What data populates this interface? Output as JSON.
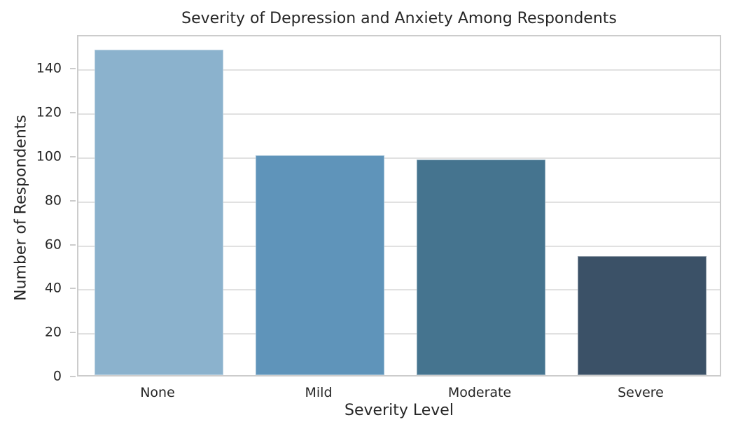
{
  "chart_data": {
    "type": "bar",
    "title": "Severity of Depression and Anxiety Among Respondents",
    "xlabel": "Severity Level",
    "ylabel": "Number of Respondents",
    "categories": [
      "None",
      "Mild",
      "Moderate",
      "Severe"
    ],
    "values": [
      148,
      100,
      98,
      54
    ],
    "bar_colors": [
      "#8bb2cd",
      "#5f94ba",
      "#45748f",
      "#3b5167"
    ],
    "ylim": [
      0,
      155.4
    ],
    "yticks": [
      0,
      20,
      40,
      60,
      80,
      100,
      120,
      140
    ],
    "bar_width_fraction": 0.8,
    "grid": "horizontal gridlines on, vertical off",
    "legend": "none",
    "styling": {
      "background": "#ffffff",
      "text_color": "#262626",
      "grid_color": "#e1e1e1",
      "spine_color": "#cccccc"
    }
  }
}
